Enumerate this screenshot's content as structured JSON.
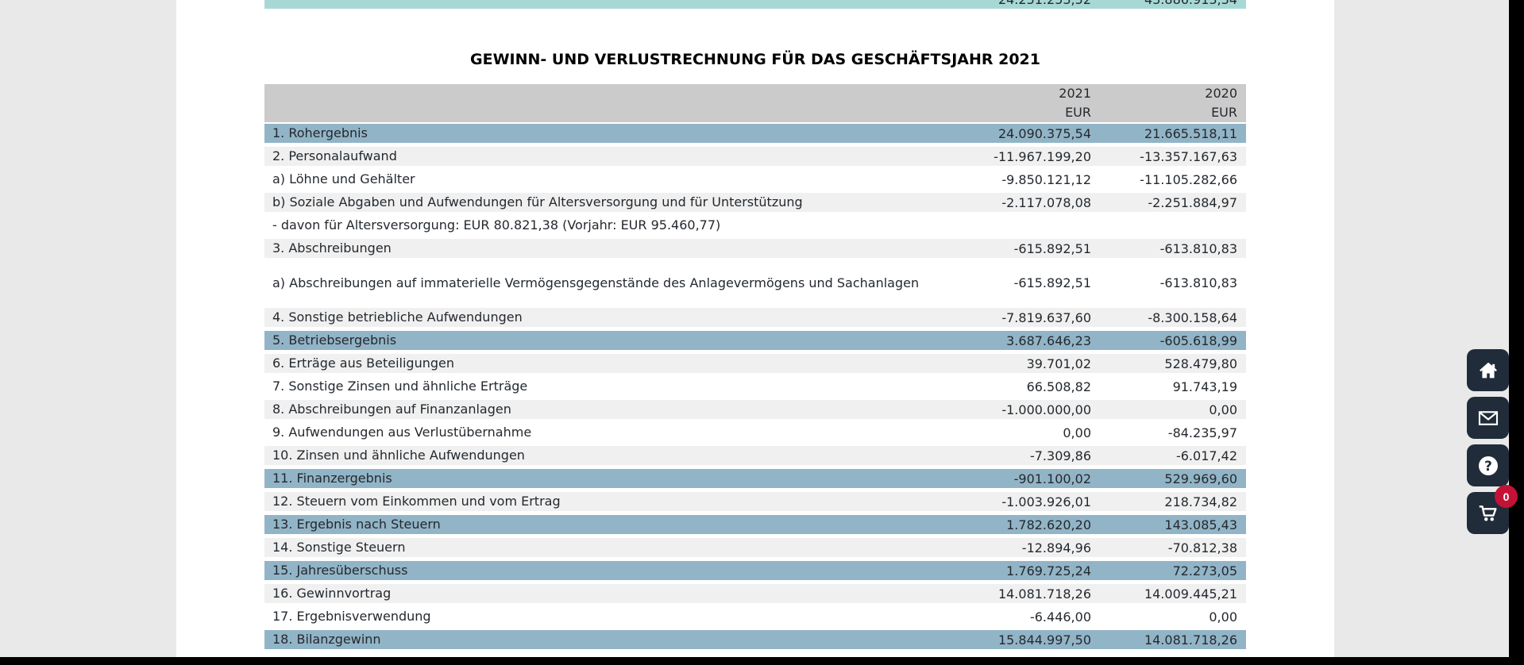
{
  "page": {
    "title": "GEWINN- UND VERLUSTRECHNUNG FÜR DAS GESCHÄFTSJAHR 2021"
  },
  "clipped_total_row": {
    "value_2021": "24.251.253,52",
    "value_2020": "43.886.913,34"
  },
  "table": {
    "columns": [
      {
        "year": "2021",
        "currency": "EUR"
      },
      {
        "year": "2020",
        "currency": "EUR"
      }
    ],
    "rows": [
      {
        "label": "1. Rohergebnis",
        "v2021": "24.090.375,54",
        "v2020": "21.665.518,11",
        "style": "highlight"
      },
      {
        "label": "2. Personalaufwand",
        "v2021": "-11.967.199,20",
        "v2020": "-13.357.167,63",
        "style": "shaded"
      },
      {
        "label": "a) Löhne und Gehälter",
        "v2021": "-9.850.121,12",
        "v2020": "-11.105.282,66",
        "style": "plain"
      },
      {
        "label": "b) Soziale Abgaben und Aufwendungen für Altersversorgung und für Unterstützung",
        "v2021": "-2.117.078,08",
        "v2020": "-2.251.884,97",
        "style": "shaded"
      },
      {
        "label": "- davon für Altersversorgung: EUR 80.821,38 (Vorjahr: EUR 95.460,77)",
        "v2021": "",
        "v2020": "",
        "style": "plain"
      },
      {
        "label": "3. Abschreibungen",
        "v2021": "-615.892,51",
        "v2020": "-613.810,83",
        "style": "shaded"
      },
      {
        "label": "a) Abschreibungen auf immaterielle Vermögensgegenstände des Anlagevermögens und Sachanlagen",
        "v2021": "-615.892,51",
        "v2020": "-613.810,83",
        "style": "plain",
        "two_line": true
      },
      {
        "label": "4. Sonstige betriebliche Aufwendungen",
        "v2021": "-7.819.637,60",
        "v2020": "-8.300.158,64",
        "style": "shaded"
      },
      {
        "label": "5. Betriebsergebnis",
        "v2021": "3.687.646,23",
        "v2020": "-605.618,99",
        "style": "highlight"
      },
      {
        "label": "6. Erträge aus Beteiligungen",
        "v2021": "39.701,02",
        "v2020": "528.479,80",
        "style": "shaded"
      },
      {
        "label": "7. Sonstige Zinsen und ähnliche Erträge",
        "v2021": "66.508,82",
        "v2020": "91.743,19",
        "style": "plain"
      },
      {
        "label": "8. Abschreibungen auf Finanzanlagen",
        "v2021": "-1.000.000,00",
        "v2020": "0,00",
        "style": "shaded"
      },
      {
        "label": "9. Aufwendungen aus Verlustübernahme",
        "v2021": "0,00",
        "v2020": "-84.235,97",
        "style": "plain"
      },
      {
        "label": "10. Zinsen und ähnliche Aufwendungen",
        "v2021": "-7.309,86",
        "v2020": "-6.017,42",
        "style": "shaded"
      },
      {
        "label": "11. Finanzergebnis",
        "v2021": "-901.100,02",
        "v2020": "529.969,60",
        "style": "highlight"
      },
      {
        "label": "12. Steuern vom Einkommen und vom Ertrag",
        "v2021": "-1.003.926,01",
        "v2020": "218.734,82",
        "style": "shaded"
      },
      {
        "label": "13. Ergebnis nach Steuern",
        "v2021": "1.782.620,20",
        "v2020": "143.085,43",
        "style": "highlight"
      },
      {
        "label": "14. Sonstige Steuern",
        "v2021": "-12.894,96",
        "v2020": "-70.812,38",
        "style": "shaded"
      },
      {
        "label": "15. Jahresüberschuss",
        "v2021": "1.769.725,24",
        "v2020": "72.273,05",
        "style": "highlight"
      },
      {
        "label": "16. Gewinnvortrag",
        "v2021": "14.081.718,26",
        "v2020": "14.009.445,21",
        "style": "shaded"
      },
      {
        "label": "17. Ergebnisverwendung",
        "v2021": "-6.446,00",
        "v2020": "0,00",
        "style": "plain"
      },
      {
        "label": "18. Bilanzgewinn",
        "v2021": "15.844.997,50",
        "v2020": "14.081.718,26",
        "style": "highlight"
      }
    ]
  },
  "floating_buttons": {
    "home": {
      "icon": "home-icon"
    },
    "mail": {
      "icon": "mail-icon"
    },
    "help": {
      "icon": "help-icon"
    },
    "cart": {
      "icon": "cart-icon",
      "badge": "0"
    }
  },
  "colors": {
    "highlight_blue": "#92b4c7",
    "header_gray": "#cbcbcb",
    "shaded_row_gray": "#f0f0f0",
    "teal": "#a8d8d5",
    "page_gray": "#e9e9e9",
    "button_dark": "#202c39",
    "badge_red": "#c31236"
  }
}
